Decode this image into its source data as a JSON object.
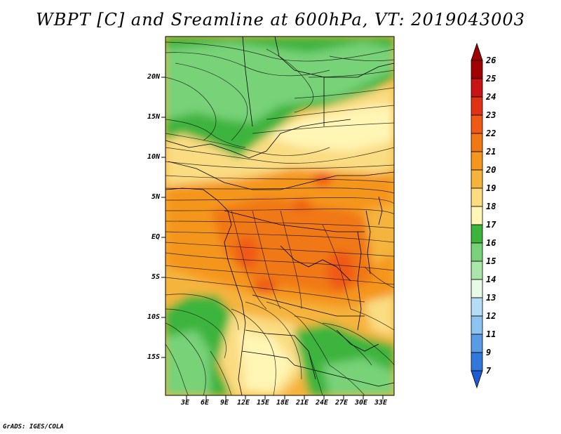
{
  "title": "WBPT [C] and Sreamline at 600hPa, VT: 2019043003",
  "footer": "GrADS: IGES/COLA",
  "lat_labels": [
    "20N",
    "15N",
    "10N",
    "5N",
    "EQ",
    "5S",
    "10S",
    "15S"
  ],
  "lon_labels": [
    "3E",
    "6E",
    "9E",
    "12E",
    "15E",
    "18E",
    "21E",
    "24E",
    "27E",
    "30E",
    "33E"
  ],
  "colorbar": {
    "labels": [
      "26",
      "25",
      "24",
      "23",
      "22",
      "21",
      "20",
      "19",
      "18",
      "17",
      "16",
      "15",
      "14",
      "13",
      "12",
      "11",
      "9",
      "7"
    ],
    "colors": [
      "#a00000",
      "#c81414",
      "#e03214",
      "#f05a14",
      "#f07814",
      "#f5961e",
      "#f5b43c",
      "#fadc82",
      "#fff5b4",
      "#3cb43c",
      "#78d278",
      "#aae6aa",
      "#e6fae6",
      "#b4dcf5",
      "#8cc3f0",
      "#5a9be6",
      "#3278dc",
      "#1e5ad2"
    ]
  },
  "colors": {
    "green_dark": "#3cb43c",
    "green_mid": "#78d278",
    "yellow_pale": "#fff5b4",
    "yellow": "#fadc82",
    "orange_light": "#f5b43c",
    "orange": "#f5961e",
    "orange_dark": "#f07814",
    "red_orange": "#f05a14"
  }
}
